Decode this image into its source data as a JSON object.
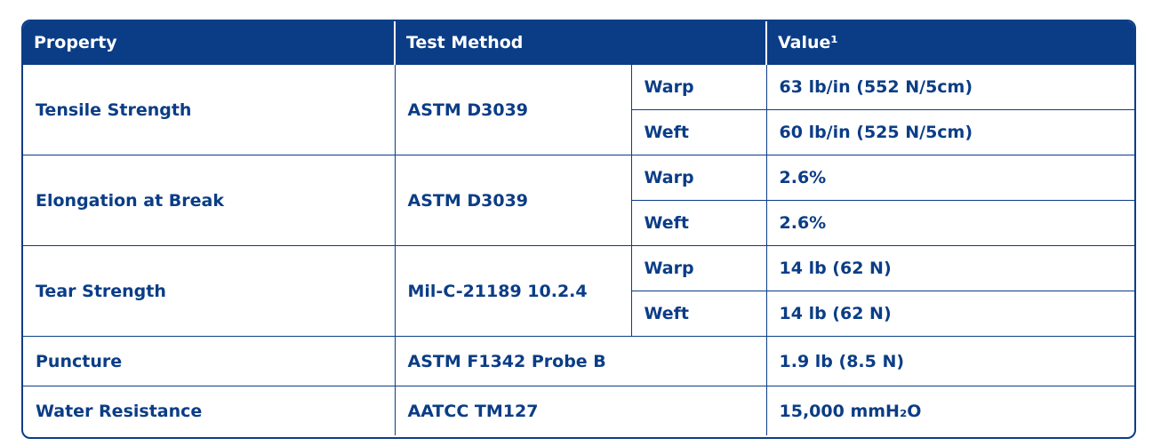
{
  "table": {
    "header": [
      "Property",
      "Test Method",
      "Value¹"
    ],
    "rows": [
      {
        "property": "Tensile Strength",
        "method": "ASTM D3039",
        "values": [
          {
            "direction": "Warp",
            "value": "63 lb/in (552 N/5cm)"
          },
          {
            "direction": "Weft",
            "value": "60 lb/in (525 N/5cm)"
          }
        ]
      },
      {
        "property": "Elongation at Break",
        "method": "ASTM D3039",
        "values": [
          {
            "direction": "Warp",
            "value": "2.6%"
          },
          {
            "direction": "Weft",
            "value": "2.6%"
          }
        ]
      },
      {
        "property": "Tear Strength",
        "method": "Mil-C-21189 10.2.4",
        "values": [
          {
            "direction": "Warp",
            "value": "14 lb (62 N)"
          },
          {
            "direction": "Weft",
            "value": "14 lb (62 N)"
          }
        ]
      },
      {
        "property": "Puncture",
        "method": "ASTM F1342 Probe B",
        "value": "1.9 lb (8.5 N)"
      },
      {
        "property": "Water Resistance",
        "method": "AATCC TM127",
        "value": "15,000 mmH₂O"
      }
    ]
  }
}
